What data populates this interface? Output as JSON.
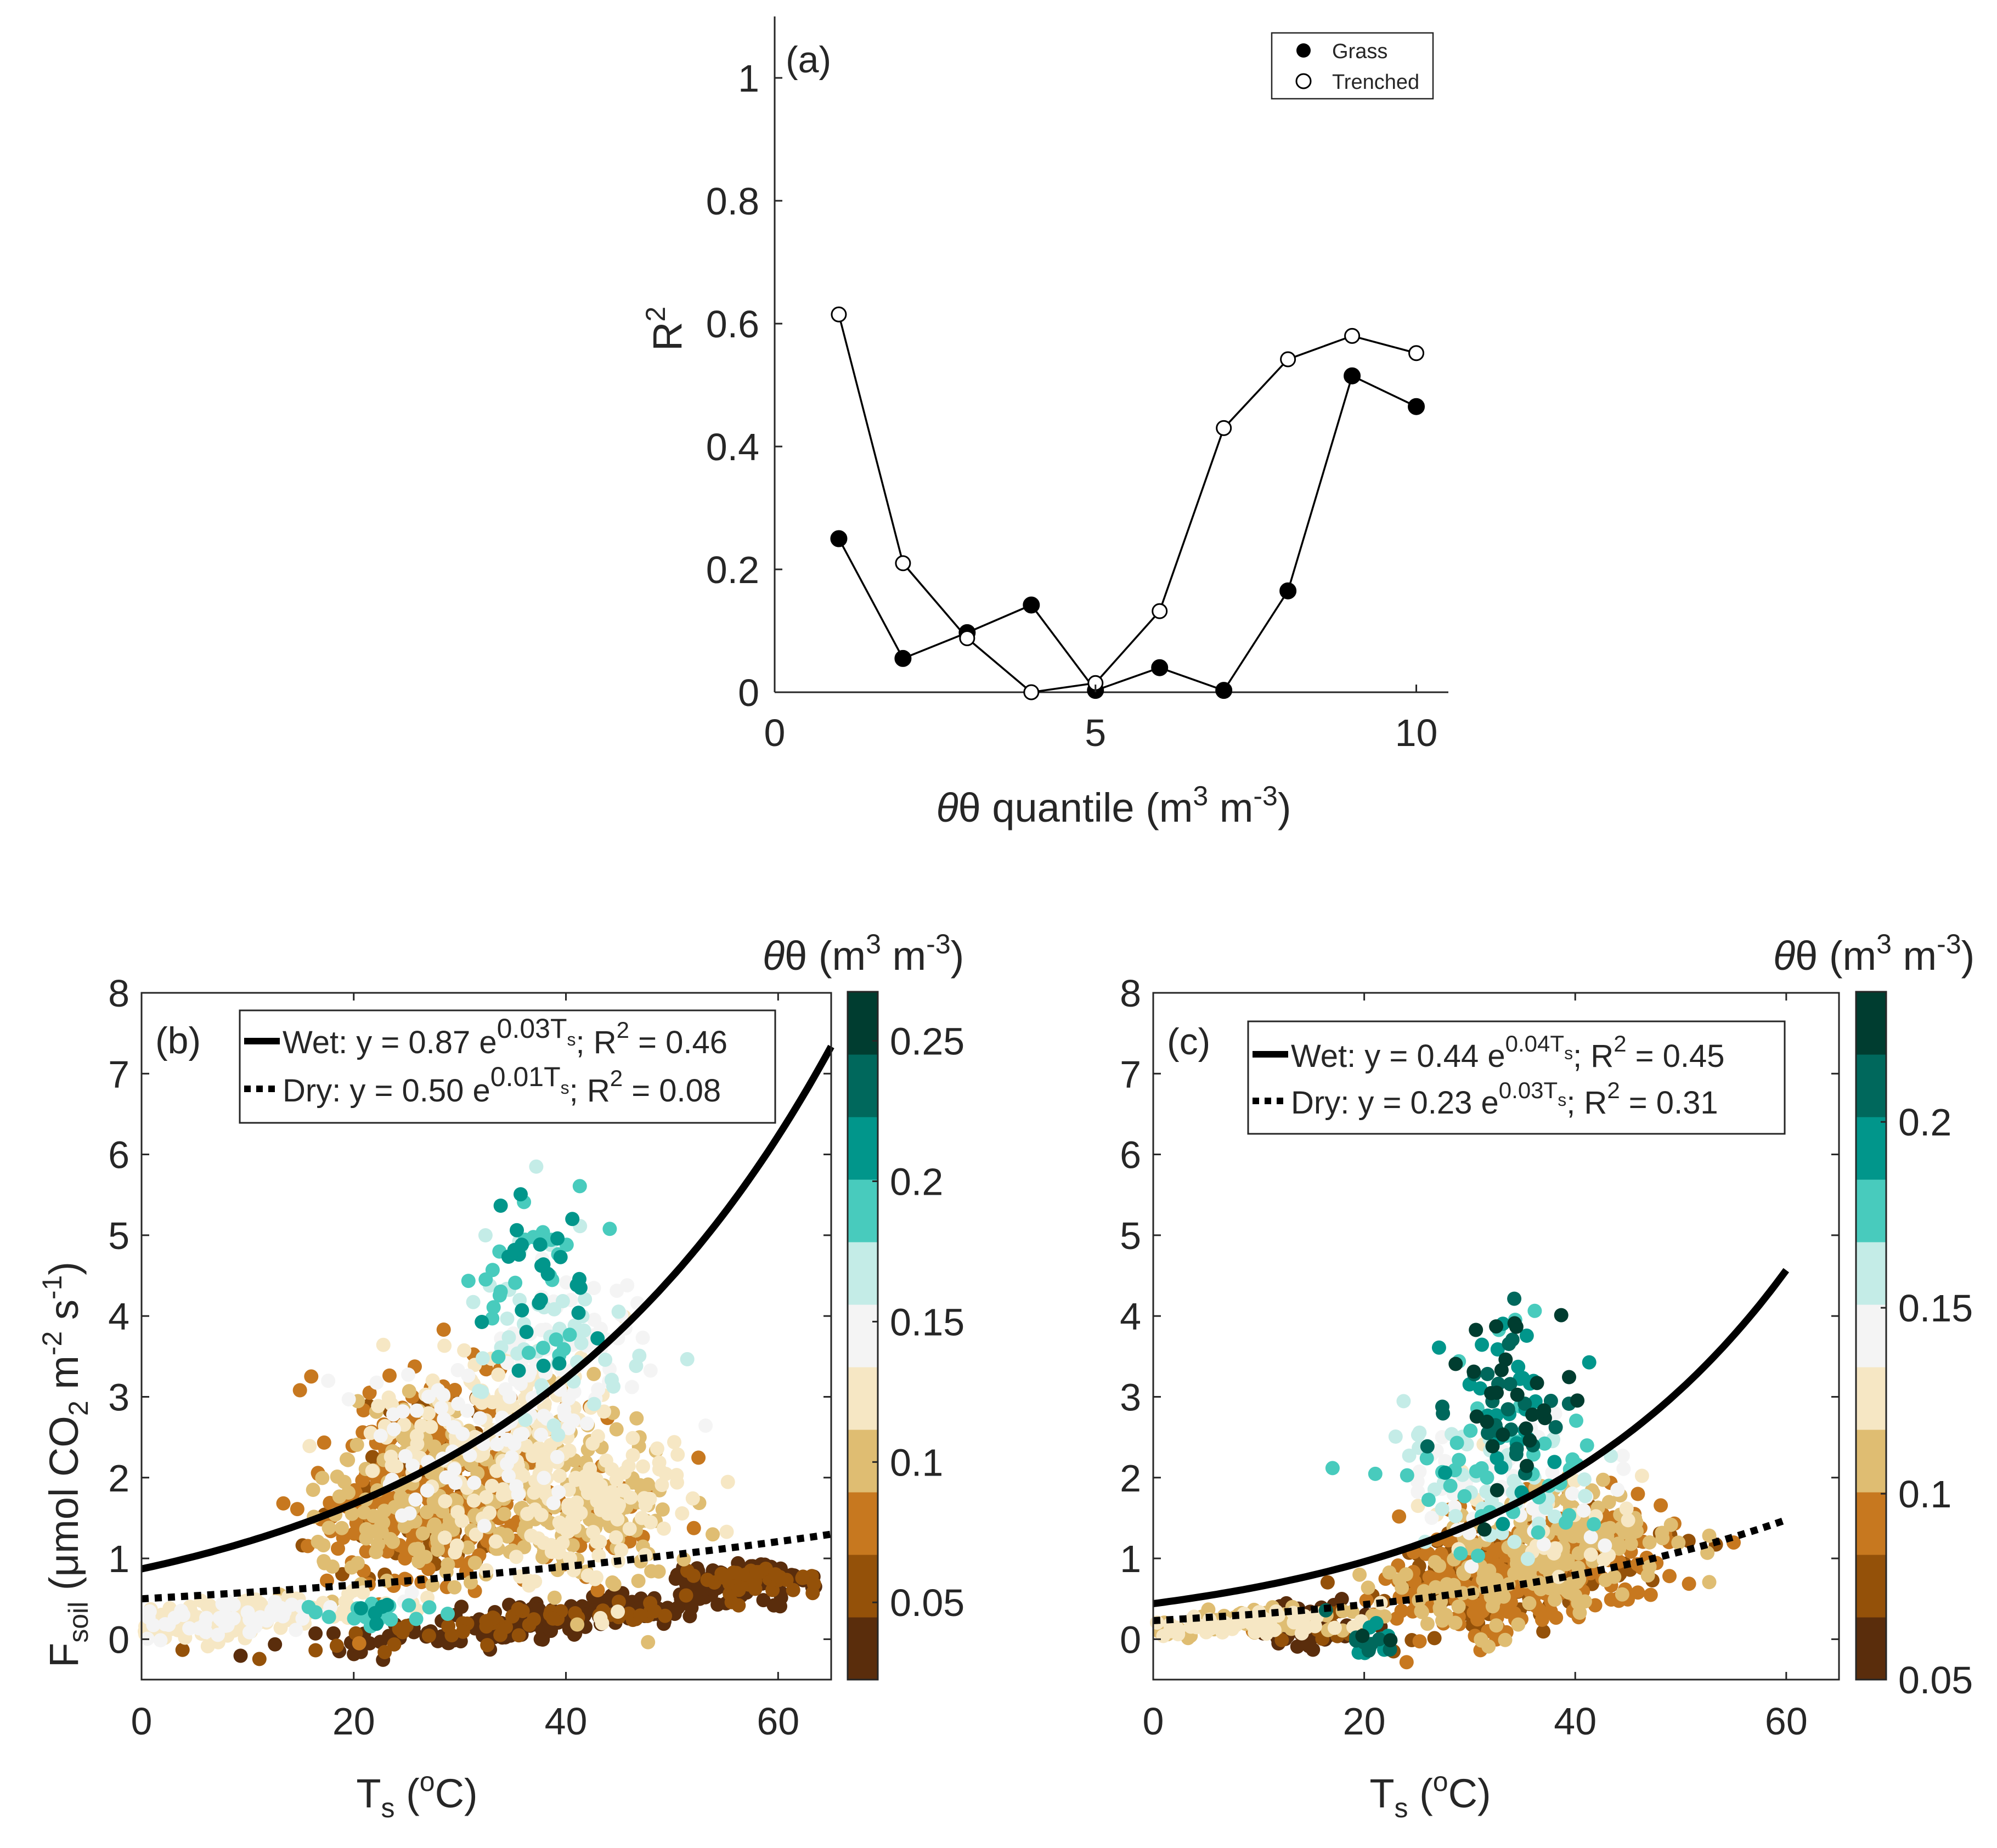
{
  "colors": {
    "axis": "#262626",
    "line": "#000000",
    "theta_colormap": [
      "#5a2d0c",
      "#945109",
      "#c7781f",
      "#dfbd72",
      "#f6e7c4",
      "#f4f4f4",
      "#c4ece7",
      "#48cbbd",
      "#01968b",
      "#00685c",
      "#003d30"
    ]
  },
  "chart_data": [
    {
      "id": "a",
      "type": "line",
      "panel_label": "(a)",
      "xlabel": {
        "pre": "θ quantile (m",
        "sup1": "3",
        "mid": " m",
        "sup2": "-3",
        "post": ")"
      },
      "ylabel": {
        "base": "R",
        "sup": "2"
      },
      "xlim": [
        0,
        10.5
      ],
      "ylim": [
        0,
        1.1
      ],
      "xticks": [
        0,
        5,
        10
      ],
      "xtick_labels": [
        "0",
        "5",
        "10"
      ],
      "yticks": [
        0,
        0.2,
        0.4,
        0.6,
        0.8,
        1
      ],
      "ytick_labels": [
        "0",
        "0.2",
        "0.4",
        "0.6",
        "0.8",
        "1"
      ],
      "legend_position": "top-right",
      "series": [
        {
          "name": "Grass",
          "marker": "filled-circle",
          "x": [
            1,
            2,
            3,
            4,
            5,
            6,
            7,
            8,
            9,
            10
          ],
          "values": [
            0.25,
            0.055,
            0.097,
            0.142,
            0.003,
            0.04,
            0.003,
            0.165,
            0.515,
            0.465
          ]
        },
        {
          "name": "Trenched",
          "marker": "open-circle",
          "x": [
            1,
            2,
            3,
            4,
            5,
            6,
            7,
            8,
            9,
            10
          ],
          "values": [
            0.615,
            0.21,
            0.088,
            0.0,
            0.015,
            0.132,
            0.43,
            0.542,
            0.58,
            0.552
          ]
        }
      ]
    },
    {
      "id": "b",
      "type": "scatter",
      "panel_label": "(b)",
      "xlabel": {
        "base": "T",
        "sub": "s",
        "pre": " (",
        "sup": "o",
        "post": "C)"
      },
      "ylabel": {
        "base": "F",
        "sub": "soil",
        "text": " (μmol CO",
        "sub2": "2",
        "mid": " m",
        "sup1": "-2",
        "mid2": " s",
        "sup2": "-1",
        "post": ")"
      },
      "xlim": [
        0,
        65
      ],
      "ylim": [
        -0.5,
        8
      ],
      "xticks": [
        0,
        20,
        40,
        60
      ],
      "xtick_labels": [
        "0",
        "20",
        "40",
        "60"
      ],
      "yticks": [
        0,
        1,
        2,
        3,
        4,
        5,
        6,
        7,
        8
      ],
      "ytick_labels": [
        "0",
        "1",
        "2",
        "3",
        "4",
        "5",
        "6",
        "7",
        "8"
      ],
      "colorbar": {
        "title": {
          "pre": "θ (m",
          "sup1": "3",
          "mid": " m",
          "sup2": "-3",
          "post": ")"
        },
        "range": [
          0.0225,
          0.2675
        ],
        "ticks": [
          0.05,
          0.1,
          0.15,
          0.2,
          0.25
        ],
        "tick_labels": [
          "0.05",
          "0.1",
          "0.15",
          "0.2",
          "0.25"
        ]
      },
      "fits": [
        {
          "name": "Wet",
          "style": "solid",
          "a": 0.87,
          "b": 0.0328,
          "x_range": [
            0,
            65
          ],
          "label": {
            "pre": "Wet: y = 0.87 e",
            "sup": "0.03T",
            "supsub": "s",
            "mid": "; R",
            "sup2": "2",
            "post": " = 0.46"
          }
        },
        {
          "name": "Dry",
          "style": "dotted",
          "a": 0.5,
          "b": 0.0147,
          "x_range": [
            0,
            65
          ],
          "label": {
            "pre": "Dry: y = 0.50 e",
            "sup": "0.01T",
            "supsub": "s",
            "mid": "; R",
            "sup2": "2",
            "post": " = 0.08"
          }
        }
      ],
      "scatter_note": "several thousand half-hourly observations, colored by soil moisture θ",
      "scatter_seed": 7,
      "scatter_clusters": [
        {
          "n": 220,
          "xc": 10,
          "xs": 5.5,
          "yc": 0.28,
          "ys": 0.1,
          "yslope": 0.012,
          "theta": [
            0.11,
            0.14
          ]
        },
        {
          "n": 260,
          "xc": 40,
          "xs": 11,
          "yc": 0.28,
          "ys": 0.1,
          "yslope": 0.016,
          "theta": [
            0.03,
            0.05
          ]
        },
        {
          "n": 120,
          "xc": 57,
          "xs": 3,
          "yc": 0.78,
          "ys": 0.07,
          "yslope": 0,
          "theta": [
            0.03,
            0.05
          ]
        },
        {
          "n": 520,
          "xc": 27,
          "xs": 5,
          "yc": 1.8,
          "ys": 0.6,
          "yslope": 0.02,
          "theta": [
            0.06,
            0.1
          ]
        },
        {
          "n": 360,
          "xc": 40,
          "xs": 6,
          "yc": 1.7,
          "ys": 0.55,
          "yslope": 0,
          "theta": [
            0.08,
            0.13
          ]
        },
        {
          "n": 200,
          "xc": 33,
          "xs": 6,
          "yc": 2.6,
          "ys": 0.5,
          "yslope": 0,
          "theta": [
            0.11,
            0.15
          ]
        },
        {
          "n": 110,
          "xc": 40,
          "xs": 4,
          "yc": 3.5,
          "ys": 0.45,
          "yslope": 0,
          "theta": [
            0.13,
            0.17
          ]
        },
        {
          "n": 70,
          "xc": 37,
          "xs": 3,
          "yc": 4.4,
          "ys": 0.6,
          "yslope": 0,
          "theta": [
            0.17,
            0.22
          ]
        },
        {
          "n": 25,
          "xc": 22,
          "xs": 2.5,
          "yc": 0.3,
          "ys": 0.1,
          "yslope": 0,
          "theta": [
            0.18,
            0.21
          ]
        }
      ]
    },
    {
      "id": "c",
      "type": "scatter",
      "panel_label": "(c)",
      "xlabel": {
        "base": "T",
        "sub": "s",
        "pre": " (",
        "sup": "o",
        "post": "C)"
      },
      "xlim": [
        0,
        65
      ],
      "ylim": [
        -0.5,
        8
      ],
      "xticks": [
        0,
        20,
        40,
        60
      ],
      "xtick_labels": [
        "0",
        "20",
        "40",
        "60"
      ],
      "yticks": [
        0,
        1,
        2,
        3,
        4,
        5,
        6,
        7,
        8
      ],
      "ytick_labels": [
        "0",
        "1",
        "2",
        "3",
        "4",
        "5",
        "6",
        "7",
        "8"
      ],
      "colorbar": {
        "title": {
          "pre": "θ (m",
          "sup1": "3",
          "mid": " m",
          "sup2": "-3",
          "post": ")"
        },
        "range": [
          0.05,
          0.235
        ],
        "ticks": [
          0.05,
          0.1,
          0.15,
          0.2
        ],
        "tick_labels": [
          "0.05",
          "0.1",
          "0.15",
          "0.2"
        ]
      },
      "fits": [
        {
          "name": "Wet",
          "style": "solid",
          "a": 0.44,
          "b": 0.039,
          "x_range": [
            0,
            60
          ],
          "label": {
            "pre": "Wet: y = 0.44 e",
            "sup": "0.04T",
            "supsub": "s",
            "mid": "; R",
            "sup2": "2",
            "post": " = 0.45"
          }
        },
        {
          "name": "Dry",
          "style": "dotted",
          "a": 0.23,
          "b": 0.031,
          "x_range": [
            0,
            60
          ],
          "label": {
            "pre": "Dry: y = 0.23 e",
            "sup": "0.03T",
            "supsub": "s",
            "mid": "; R",
            "sup2": "2",
            "post": " = 0.31"
          }
        }
      ],
      "scatter_note": "several thousand half-hourly observations, colored by soil moisture θ",
      "scatter_seed": 11,
      "scatter_clusters": [
        {
          "n": 140,
          "xc": 10,
          "xs": 5,
          "yc": 0.22,
          "ys": 0.08,
          "yslope": 0.006,
          "theta": [
            0.1,
            0.13
          ]
        },
        {
          "n": 60,
          "xc": 15,
          "xs": 3,
          "yc": 0.2,
          "ys": 0.15,
          "yslope": 0,
          "theta": [
            0.05,
            0.07
          ]
        },
        {
          "n": 520,
          "xc": 34,
          "xs": 6,
          "yc": 0.75,
          "ys": 0.32,
          "yslope": 0.015,
          "theta": [
            0.07,
            0.11
          ]
        },
        {
          "n": 180,
          "xc": 40,
          "xs": 5,
          "yc": 1.35,
          "ys": 0.3,
          "yslope": 0,
          "theta": [
            0.09,
            0.12
          ]
        },
        {
          "n": 150,
          "xc": 33,
          "xs": 5,
          "yc": 1.95,
          "ys": 0.4,
          "yslope": 0,
          "theta": [
            0.13,
            0.18
          ]
        },
        {
          "n": 90,
          "xc": 34,
          "xs": 3,
          "yc": 2.9,
          "ys": 0.6,
          "yslope": 0,
          "theta": [
            0.18,
            0.23
          ]
        },
        {
          "n": 20,
          "xc": 21,
          "xs": 1.5,
          "yc": -0.05,
          "ys": 0.12,
          "yslope": 0,
          "theta": [
            0.19,
            0.22
          ]
        }
      ]
    }
  ]
}
